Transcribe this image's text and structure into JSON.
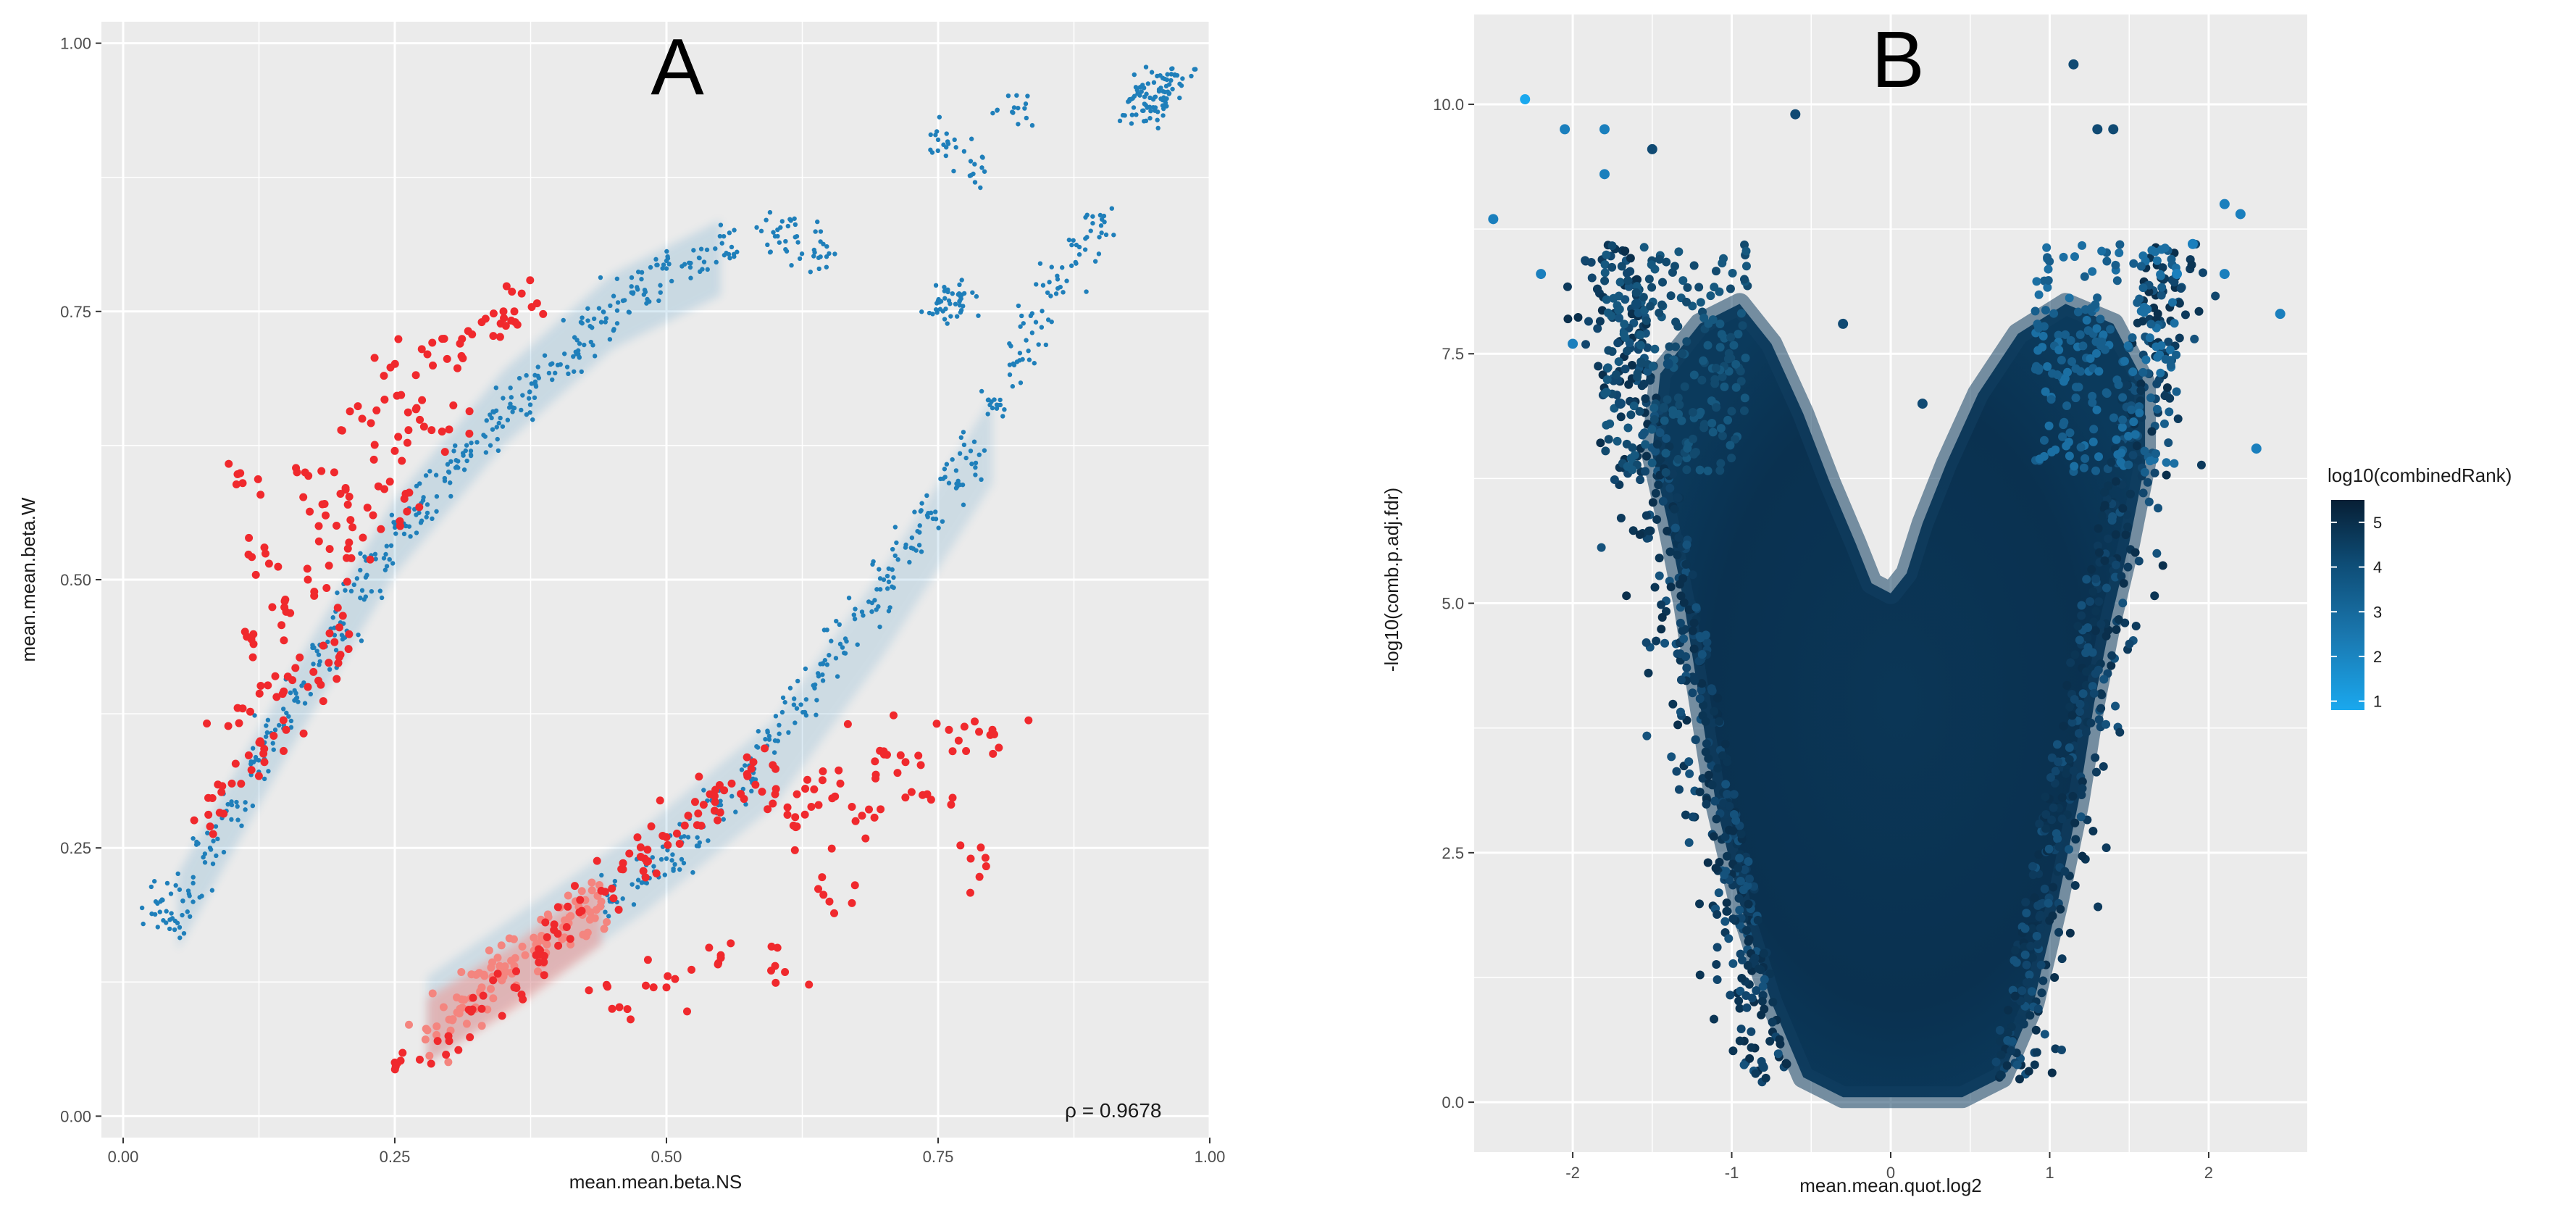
{
  "colors": {
    "panel_bg": "#ebebeb",
    "grid": "#ffffff",
    "red": "#f0292d",
    "pink": "#f4857f",
    "blue": "#1f7fba",
    "dark_navy": "#0a2a44",
    "light_blue": "#1aa8ee"
  },
  "chart_data": [
    {
      "id": "A",
      "type": "scatter",
      "panel_label": "A",
      "xlabel": "mean.mean.beta.NS",
      "ylabel": "mean.mean.beta.W",
      "xlim": [
        -0.02,
        1.0
      ],
      "ylim": [
        -0.02,
        1.02
      ],
      "x_ticks": [
        0.0,
        0.25,
        0.5,
        0.75,
        1.0
      ],
      "x_tick_labels": [
        "0.00",
        "0.25",
        "0.50",
        "0.75",
        "1.00"
      ],
      "y_ticks": [
        0.0,
        0.25,
        0.5,
        0.75,
        1.0
      ],
      "y_tick_labels": [
        "0.00",
        "0.25",
        "0.50",
        "0.75",
        "1.00"
      ],
      "annotation": "ρ = 0.9678",
      "series": [
        {
          "name": "upper-band-blue",
          "color": "#1f7fba",
          "size": "small",
          "points": [
            [
              0.03,
              0.2
            ],
            [
              0.05,
              0.18
            ],
            [
              0.06,
              0.21
            ],
            [
              0.08,
              0.25
            ],
            [
              0.1,
              0.29
            ],
            [
              0.12,
              0.33
            ],
            [
              0.14,
              0.36
            ],
            [
              0.16,
              0.39
            ],
            [
              0.18,
              0.43
            ],
            [
              0.2,
              0.46
            ],
            [
              0.22,
              0.49
            ],
            [
              0.24,
              0.52
            ],
            [
              0.26,
              0.55
            ],
            [
              0.28,
              0.57
            ],
            [
              0.3,
              0.6
            ],
            [
              0.32,
              0.62
            ],
            [
              0.34,
              0.64
            ],
            [
              0.36,
              0.66
            ],
            [
              0.38,
              0.68
            ],
            [
              0.4,
              0.7
            ],
            [
              0.42,
              0.72
            ],
            [
              0.44,
              0.74
            ],
            [
              0.46,
              0.76
            ],
            [
              0.48,
              0.77
            ],
            [
              0.5,
              0.79
            ],
            [
              0.53,
              0.8
            ],
            [
              0.56,
              0.81
            ],
            [
              0.6,
              0.82
            ],
            [
              0.62,
              0.82
            ],
            [
              0.64,
              0.8
            ]
          ]
        },
        {
          "name": "upper-band-red",
          "color": "#f0292d",
          "size": "large",
          "points": [
            [
              0.08,
              0.27
            ],
            [
              0.1,
              0.31
            ],
            [
              0.11,
              0.38
            ],
            [
              0.12,
              0.44
            ],
            [
              0.11,
              0.59
            ],
            [
              0.13,
              0.53
            ],
            [
              0.14,
              0.41
            ],
            [
              0.15,
              0.47
            ],
            [
              0.16,
              0.6
            ],
            [
              0.17,
              0.5
            ],
            [
              0.18,
              0.55
            ],
            [
              0.19,
              0.45
            ],
            [
              0.2,
              0.58
            ],
            [
              0.21,
              0.52
            ],
            [
              0.22,
              0.65
            ],
            [
              0.23,
              0.56
            ],
            [
              0.24,
              0.69
            ],
            [
              0.25,
              0.62
            ],
            [
              0.26,
              0.58
            ],
            [
              0.27,
              0.66
            ],
            [
              0.28,
              0.71
            ],
            [
              0.3,
              0.64
            ],
            [
              0.31,
              0.72
            ],
            [
              0.33,
              0.74
            ],
            [
              0.35,
              0.75
            ],
            [
              0.36,
              0.75
            ],
            [
              0.2,
              0.43
            ],
            [
              0.17,
              0.4
            ],
            [
              0.15,
              0.36
            ],
            [
              0.13,
              0.33
            ]
          ]
        },
        {
          "name": "lower-band-blue",
          "color": "#1f7fba",
          "size": "small",
          "points": [
            [
              0.45,
              0.2
            ],
            [
              0.48,
              0.22
            ],
            [
              0.5,
              0.24
            ],
            [
              0.52,
              0.26
            ],
            [
              0.55,
              0.29
            ],
            [
              0.58,
              0.32
            ],
            [
              0.6,
              0.35
            ],
            [
              0.62,
              0.38
            ],
            [
              0.64,
              0.41
            ],
            [
              0.66,
              0.44
            ],
            [
              0.68,
              0.47
            ],
            [
              0.7,
              0.5
            ],
            [
              0.72,
              0.53
            ],
            [
              0.74,
              0.56
            ],
            [
              0.76,
              0.59
            ],
            [
              0.78,
              0.62
            ],
            [
              0.8,
              0.66
            ],
            [
              0.82,
              0.7
            ],
            [
              0.84,
              0.74
            ],
            [
              0.86,
              0.78
            ],
            [
              0.88,
              0.81
            ],
            [
              0.9,
              0.83
            ],
            [
              0.76,
              0.76
            ],
            [
              0.75,
              0.76
            ],
            [
              0.77,
              0.76
            ],
            [
              0.94,
              0.95
            ],
            [
              0.95,
              0.95
            ],
            [
              0.96,
              0.96
            ],
            [
              0.97,
              0.97
            ],
            [
              0.95,
              0.94
            ],
            [
              0.93,
              0.94
            ],
            [
              0.82,
              0.94
            ],
            [
              0.75,
              0.91
            ],
            [
              0.78,
              0.89
            ]
          ]
        },
        {
          "name": "lower-band-red",
          "color": "#f0292d",
          "size": "large",
          "points": [
            [
              0.25,
              0.05
            ],
            [
              0.3,
              0.07
            ],
            [
              0.33,
              0.1
            ],
            [
              0.36,
              0.12
            ],
            [
              0.38,
              0.15
            ],
            [
              0.4,
              0.17
            ],
            [
              0.42,
              0.19
            ],
            [
              0.44,
              0.21
            ],
            [
              0.46,
              0.23
            ],
            [
              0.48,
              0.24
            ],
            [
              0.5,
              0.26
            ],
            [
              0.52,
              0.28
            ],
            [
              0.54,
              0.3
            ],
            [
              0.56,
              0.31
            ],
            [
              0.58,
              0.33
            ],
            [
              0.6,
              0.3
            ],
            [
              0.62,
              0.27
            ],
            [
              0.64,
              0.29
            ],
            [
              0.66,
              0.31
            ],
            [
              0.68,
              0.28
            ],
            [
              0.7,
              0.34
            ],
            [
              0.72,
              0.33
            ],
            [
              0.74,
              0.3
            ],
            [
              0.76,
              0.36
            ],
            [
              0.78,
              0.24
            ],
            [
              0.8,
              0.36
            ],
            [
              0.45,
              0.1
            ],
            [
              0.5,
              0.12
            ],
            [
              0.55,
              0.15
            ],
            [
              0.6,
              0.14
            ],
            [
              0.65,
              0.2
            ]
          ]
        },
        {
          "name": "lower-band-pink",
          "color": "#f4857f",
          "size": "large",
          "points": [
            [
              0.28,
              0.08
            ],
            [
              0.3,
              0.09
            ],
            [
              0.31,
              0.1
            ],
            [
              0.32,
              0.11
            ],
            [
              0.33,
              0.12
            ],
            [
              0.34,
              0.13
            ],
            [
              0.35,
              0.13
            ],
            [
              0.36,
              0.14
            ],
            [
              0.37,
              0.15
            ],
            [
              0.38,
              0.16
            ],
            [
              0.39,
              0.16
            ],
            [
              0.4,
              0.17
            ],
            [
              0.41,
              0.18
            ],
            [
              0.42,
              0.19
            ],
            [
              0.43,
              0.19
            ],
            [
              0.44,
              0.2
            ]
          ]
        }
      ]
    },
    {
      "id": "B",
      "type": "scatter",
      "panel_label": "B",
      "xlabel": "mean.mean.quot.log2",
      "ylabel": "-log10(comb.p.adj.fdr)",
      "xlim": [
        -2.62,
        2.62
      ],
      "ylim": [
        -0.5,
        10.9
      ],
      "x_ticks": [
        -2,
        -1,
        0,
        1,
        2
      ],
      "x_tick_labels": [
        "-2",
        "-1",
        "0",
        "1",
        "2"
      ],
      "y_ticks": [
        0.0,
        2.5,
        5.0,
        7.5,
        10.0
      ],
      "y_tick_labels": [
        "0.0",
        "2.5",
        "5.0",
        "7.5",
        "10.0"
      ],
      "legend": {
        "title": "log10(combinedRank)",
        "range": [
          0.8,
          5.5
        ],
        "ticks": [
          1,
          2,
          3,
          4,
          5
        ],
        "tick_labels": [
          "1",
          "2",
          "3",
          "4",
          "5"
        ],
        "color_low": "#1aa8ee",
        "color_high": "#071f35"
      },
      "highlight_points": [
        [
          -2.3,
          10.05
        ],
        [
          -2.5,
          8.85
        ],
        [
          -2.05,
          9.75
        ],
        [
          -1.8,
          9.75
        ],
        [
          -1.5,
          9.55
        ],
        [
          -1.8,
          9.3
        ],
        [
          -0.6,
          9.9
        ],
        [
          1.15,
          10.4
        ],
        [
          1.3,
          9.75
        ],
        [
          1.4,
          9.75
        ],
        [
          2.1,
          9.0
        ],
        [
          2.2,
          8.9
        ],
        [
          2.45,
          7.9
        ],
        [
          2.1,
          8.3
        ],
        [
          2.3,
          6.55
        ],
        [
          1.9,
          8.6
        ],
        [
          1.8,
          8.3
        ],
        [
          -2.0,
          7.6
        ],
        [
          -1.7,
          7.0
        ],
        [
          -1.6,
          8.0
        ],
        [
          -2.2,
          8.3
        ],
        [
          -1.4,
          7.4
        ],
        [
          0.2,
          7.0
        ],
        [
          -0.3,
          7.8
        ]
      ]
    }
  ]
}
